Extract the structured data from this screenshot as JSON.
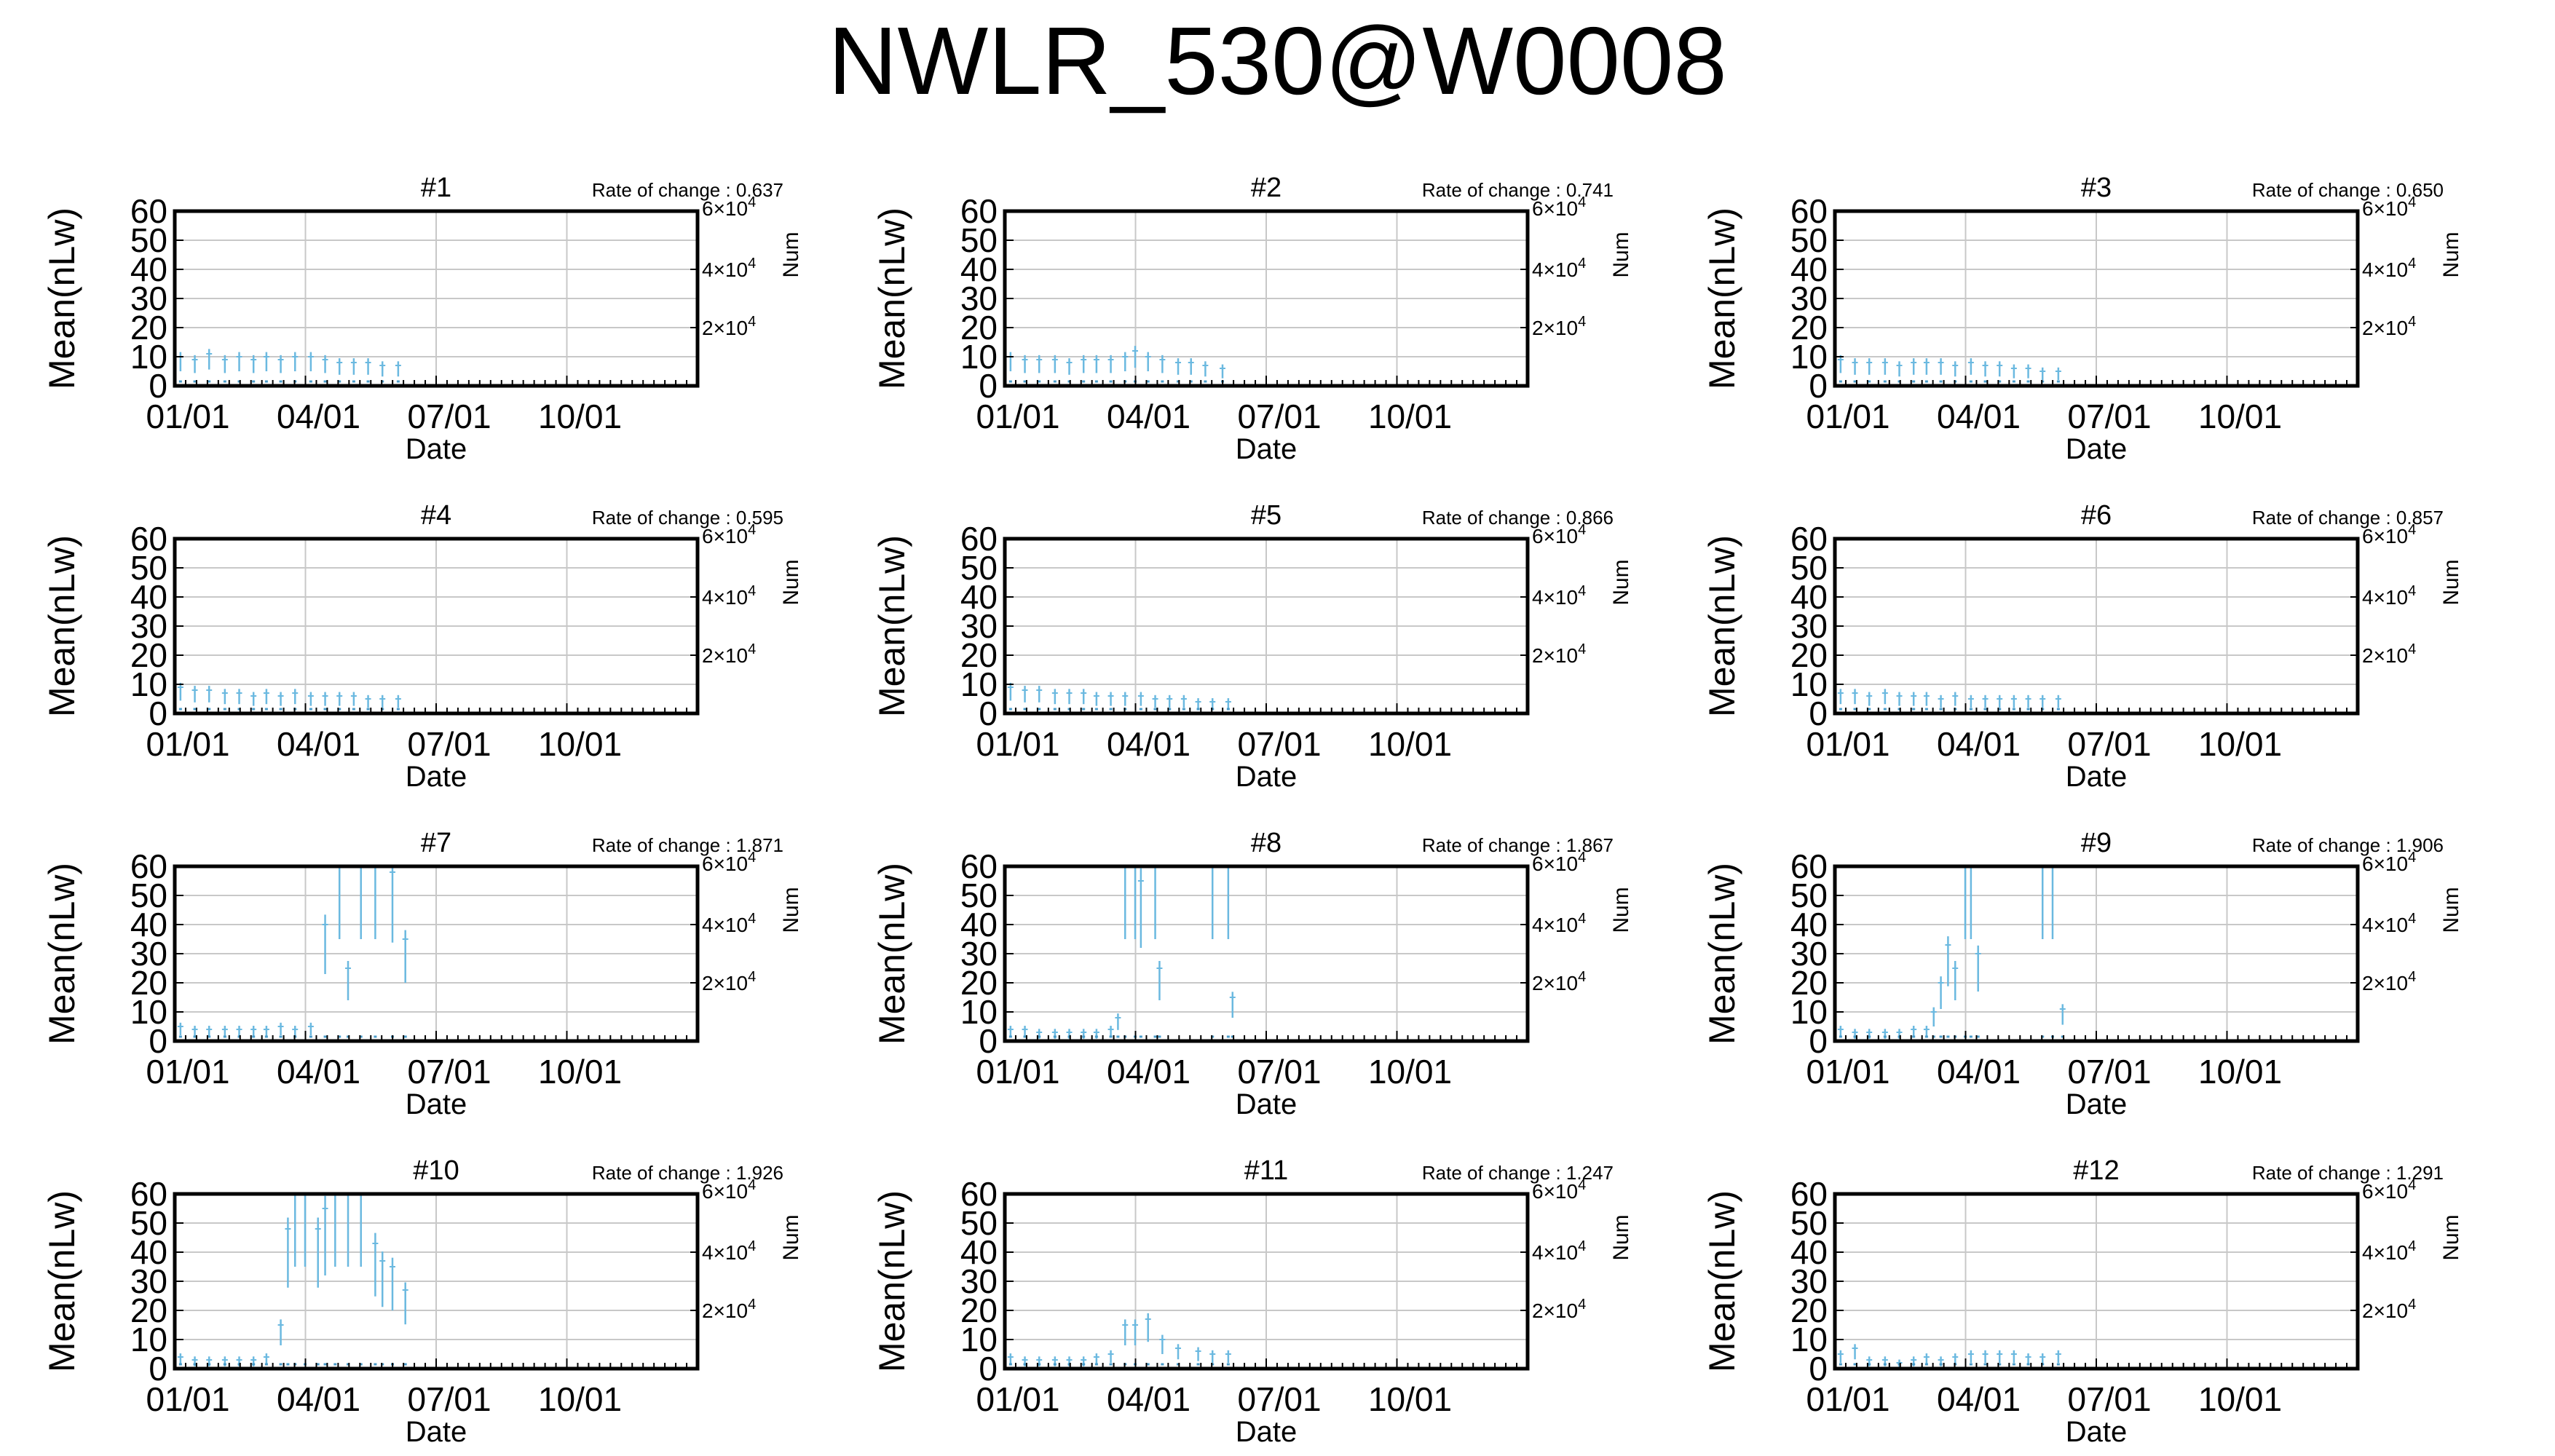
{
  "page_title": "NWLR_530@W0008",
  "common": {
    "ylabel": "Mean(nLw)",
    "xlabel": "Date",
    "y2label": "Num",
    "yticks": [
      "0",
      "10",
      "20",
      "30",
      "40",
      "50",
      "60"
    ],
    "xticks": [
      "01/01",
      "04/01",
      "07/01",
      "10/01"
    ],
    "y2ticks": [
      {
        "base": "2×10",
        "exp": "4"
      },
      {
        "base": "4×10",
        "exp": "4"
      },
      {
        "base": "6×10",
        "exp": "4"
      }
    ],
    "rate_prefix": "Rate of change : ",
    "ylim": [
      0,
      60
    ],
    "y2lim": [
      0,
      60000
    ],
    "x_start": "2000-01-01",
    "x_end": "2000-12-31",
    "series_color": "#6bb9e0",
    "grid": true
  },
  "chart_data": [
    {
      "type": "scatter",
      "title": "#1",
      "rate": "0.637",
      "points": [
        [
          "01-05",
          10
        ],
        [
          "01-15",
          9
        ],
        [
          "01-25",
          11
        ],
        [
          "02-05",
          9
        ],
        [
          "02-15",
          10
        ],
        [
          "02-25",
          9
        ],
        [
          "03-05",
          10
        ],
        [
          "03-15",
          9
        ],
        [
          "03-25",
          10
        ],
        [
          "04-05",
          10
        ],
        [
          "04-15",
          9
        ],
        [
          "04-25",
          8
        ],
        [
          "05-05",
          8
        ],
        [
          "05-15",
          8
        ],
        [
          "05-25",
          7
        ],
        [
          "06-05",
          7
        ]
      ]
    },
    {
      "type": "scatter",
      "title": "#2",
      "rate": "0.741",
      "points": [
        [
          "01-05",
          10
        ],
        [
          "01-15",
          9
        ],
        [
          "01-25",
          9
        ],
        [
          "02-05",
          9
        ],
        [
          "02-15",
          8
        ],
        [
          "02-25",
          9
        ],
        [
          "03-05",
          9
        ],
        [
          "03-15",
          9
        ],
        [
          "03-25",
          10
        ],
        [
          "04-01",
          12
        ],
        [
          "04-10",
          10
        ],
        [
          "04-20",
          9
        ],
        [
          "05-01",
          8
        ],
        [
          "05-10",
          8
        ],
        [
          "05-20",
          7
        ],
        [
          "06-01",
          6
        ]
      ]
    },
    {
      "type": "scatter",
      "title": "#3",
      "rate": "0.650",
      "points": [
        [
          "01-05",
          9
        ],
        [
          "01-15",
          8
        ],
        [
          "01-25",
          8
        ],
        [
          "02-05",
          8
        ],
        [
          "02-15",
          7
        ],
        [
          "02-25",
          8
        ],
        [
          "03-05",
          8
        ],
        [
          "03-15",
          8
        ],
        [
          "03-25",
          7
        ],
        [
          "04-05",
          8
        ],
        [
          "04-15",
          7
        ],
        [
          "04-25",
          7
        ],
        [
          "05-05",
          6
        ],
        [
          "05-15",
          6
        ],
        [
          "05-25",
          5
        ],
        [
          "06-05",
          5
        ]
      ]
    },
    {
      "type": "scatter",
      "title": "#4",
      "rate": "0.595",
      "points": [
        [
          "01-05",
          9
        ],
        [
          "01-15",
          8
        ],
        [
          "01-25",
          8
        ],
        [
          "02-05",
          7
        ],
        [
          "02-15",
          7
        ],
        [
          "02-25",
          6
        ],
        [
          "03-05",
          7
        ],
        [
          "03-15",
          6
        ],
        [
          "03-25",
          7
        ],
        [
          "04-05",
          6
        ],
        [
          "04-15",
          6
        ],
        [
          "04-25",
          6
        ],
        [
          "05-05",
          6
        ],
        [
          "05-15",
          5
        ],
        [
          "05-25",
          5
        ],
        [
          "06-05",
          5
        ]
      ]
    },
    {
      "type": "scatter",
      "title": "#5",
      "rate": "0.866",
      "points": [
        [
          "01-05",
          9
        ],
        [
          "01-15",
          8
        ],
        [
          "01-25",
          8
        ],
        [
          "02-05",
          7
        ],
        [
          "02-15",
          7
        ],
        [
          "02-25",
          7
        ],
        [
          "03-05",
          6
        ],
        [
          "03-15",
          6
        ],
        [
          "03-25",
          6
        ],
        [
          "04-05",
          6
        ],
        [
          "04-15",
          5
        ],
        [
          "04-25",
          5
        ],
        [
          "05-05",
          5
        ],
        [
          "05-15",
          4
        ],
        [
          "05-25",
          4
        ],
        [
          "06-05",
          4
        ]
      ]
    },
    {
      "type": "scatter",
      "title": "#6",
      "rate": "0.857",
      "points": [
        [
          "01-05",
          7
        ],
        [
          "01-15",
          7
        ],
        [
          "01-25",
          6
        ],
        [
          "02-05",
          7
        ],
        [
          "02-15",
          6
        ],
        [
          "02-25",
          6
        ],
        [
          "03-05",
          6
        ],
        [
          "03-15",
          5
        ],
        [
          "03-25",
          6
        ],
        [
          "04-05",
          5
        ],
        [
          "04-15",
          5
        ],
        [
          "04-25",
          5
        ],
        [
          "05-05",
          5
        ],
        [
          "05-15",
          5
        ],
        [
          "05-25",
          5
        ],
        [
          "06-05",
          5
        ]
      ]
    },
    {
      "type": "scatter",
      "title": "#7",
      "rate": "1.871",
      "points": [
        [
          "01-05",
          5
        ],
        [
          "01-15",
          4
        ],
        [
          "01-25",
          4
        ],
        [
          "02-05",
          4
        ],
        [
          "02-15",
          4
        ],
        [
          "02-25",
          4
        ],
        [
          "03-05",
          4
        ],
        [
          "03-15",
          5
        ],
        [
          "03-25",
          4
        ],
        [
          "04-05",
          5
        ],
        [
          "04-15",
          40
        ],
        [
          "04-25",
          60
        ],
        [
          "05-01",
          25
        ],
        [
          "05-10",
          60
        ],
        [
          "05-20",
          60
        ],
        [
          "06-01",
          58
        ],
        [
          "06-10",
          35
        ]
      ]
    },
    {
      "type": "scatter",
      "title": "#8",
      "rate": "1.867",
      "points": [
        [
          "01-05",
          4
        ],
        [
          "01-15",
          4
        ],
        [
          "01-25",
          3
        ],
        [
          "02-05",
          3
        ],
        [
          "02-15",
          3
        ],
        [
          "02-25",
          3
        ],
        [
          "03-05",
          3
        ],
        [
          "03-15",
          4
        ],
        [
          "03-20",
          8
        ],
        [
          "03-25",
          60
        ],
        [
          "04-01",
          60
        ],
        [
          "04-05",
          55
        ],
        [
          "04-15",
          60
        ],
        [
          "04-18",
          25
        ],
        [
          "05-25",
          60
        ],
        [
          "06-05",
          60
        ],
        [
          "06-08",
          15
        ]
      ]
    },
    {
      "type": "scatter",
      "title": "#9",
      "rate": "1.906",
      "points": [
        [
          "01-05",
          4
        ],
        [
          "01-15",
          3
        ],
        [
          "01-25",
          3
        ],
        [
          "02-05",
          3
        ],
        [
          "02-15",
          3
        ],
        [
          "02-25",
          4
        ],
        [
          "03-05",
          4
        ],
        [
          "03-10",
          10
        ],
        [
          "03-15",
          20
        ],
        [
          "03-20",
          33
        ],
        [
          "03-25",
          25
        ],
        [
          "04-01",
          60
        ],
        [
          "04-05",
          60
        ],
        [
          "04-10",
          30
        ],
        [
          "05-25",
          60
        ],
        [
          "06-01",
          60
        ],
        [
          "06-08",
          11
        ]
      ]
    },
    {
      "type": "scatter",
      "title": "#10",
      "rate": "1.926",
      "points": [
        [
          "01-05",
          4
        ],
        [
          "01-15",
          3
        ],
        [
          "01-25",
          3
        ],
        [
          "02-05",
          3
        ],
        [
          "02-15",
          3
        ],
        [
          "02-25",
          3
        ],
        [
          "03-05",
          4
        ],
        [
          "03-15",
          15
        ],
        [
          "03-20",
          48
        ],
        [
          "03-25",
          60
        ],
        [
          "04-01",
          60
        ],
        [
          "04-10",
          48
        ],
        [
          "04-15",
          55
        ],
        [
          "04-22",
          60
        ],
        [
          "05-01",
          60
        ],
        [
          "05-10",
          60
        ],
        [
          "05-20",
          43
        ],
        [
          "05-25",
          37
        ],
        [
          "06-01",
          35
        ],
        [
          "06-10",
          27
        ]
      ]
    },
    {
      "type": "scatter",
      "title": "#11",
      "rate": "1.247",
      "points": [
        [
          "01-05",
          4
        ],
        [
          "01-15",
          3
        ],
        [
          "01-25",
          3
        ],
        [
          "02-05",
          3
        ],
        [
          "02-15",
          3
        ],
        [
          "02-25",
          3
        ],
        [
          "03-05",
          4
        ],
        [
          "03-15",
          5
        ],
        [
          "03-25",
          15
        ],
        [
          "04-01",
          15
        ],
        [
          "04-10",
          17
        ],
        [
          "04-20",
          10
        ],
        [
          "05-01",
          7
        ],
        [
          "05-15",
          6
        ],
        [
          "05-25",
          5
        ],
        [
          "06-05",
          5
        ]
      ]
    },
    {
      "type": "scatter",
      "title": "#12",
      "rate": "1.291",
      "points": [
        [
          "01-05",
          5
        ],
        [
          "01-15",
          7
        ],
        [
          "01-25",
          3
        ],
        [
          "02-05",
          3
        ],
        [
          "02-15",
          2
        ],
        [
          "02-25",
          3
        ],
        [
          "03-05",
          4
        ],
        [
          "03-15",
          3
        ],
        [
          "03-25",
          4
        ],
        [
          "04-05",
          5
        ],
        [
          "04-15",
          5
        ],
        [
          "04-25",
          5
        ],
        [
          "05-05",
          5
        ],
        [
          "05-15",
          4
        ],
        [
          "05-25",
          4
        ],
        [
          "06-05",
          5
        ]
      ]
    }
  ]
}
